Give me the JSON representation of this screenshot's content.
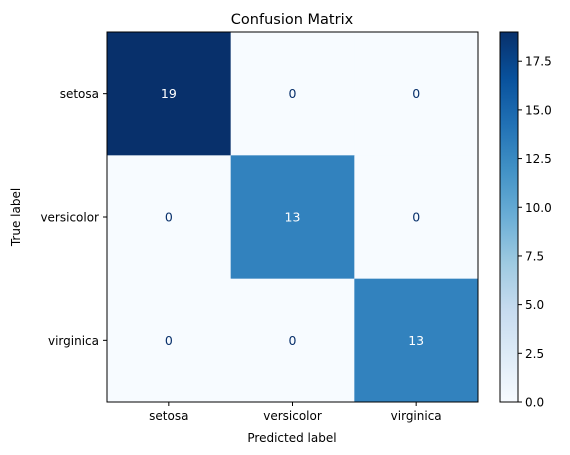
{
  "chart_data": {
    "type": "heatmap",
    "title": "Confusion Matrix",
    "xlabel": "Predicted label",
    "ylabel": "True label",
    "x_categories": [
      "setosa",
      "versicolor",
      "virginica"
    ],
    "y_categories": [
      "setosa",
      "versicolor",
      "virginica"
    ],
    "values": [
      [
        19,
        0,
        0
      ],
      [
        0,
        13,
        0
      ],
      [
        0,
        0,
        13
      ]
    ],
    "colormap": "Blues",
    "colorbar": {
      "min": 0,
      "max": 19,
      "ticks": [
        0.0,
        2.5,
        5.0,
        7.5,
        10.0,
        12.5,
        15.0,
        17.5
      ],
      "tick_labels": [
        "0.0",
        "2.5",
        "5.0",
        "7.5",
        "10.0",
        "12.5",
        "15.0",
        "17.5"
      ]
    },
    "grid": false
  }
}
